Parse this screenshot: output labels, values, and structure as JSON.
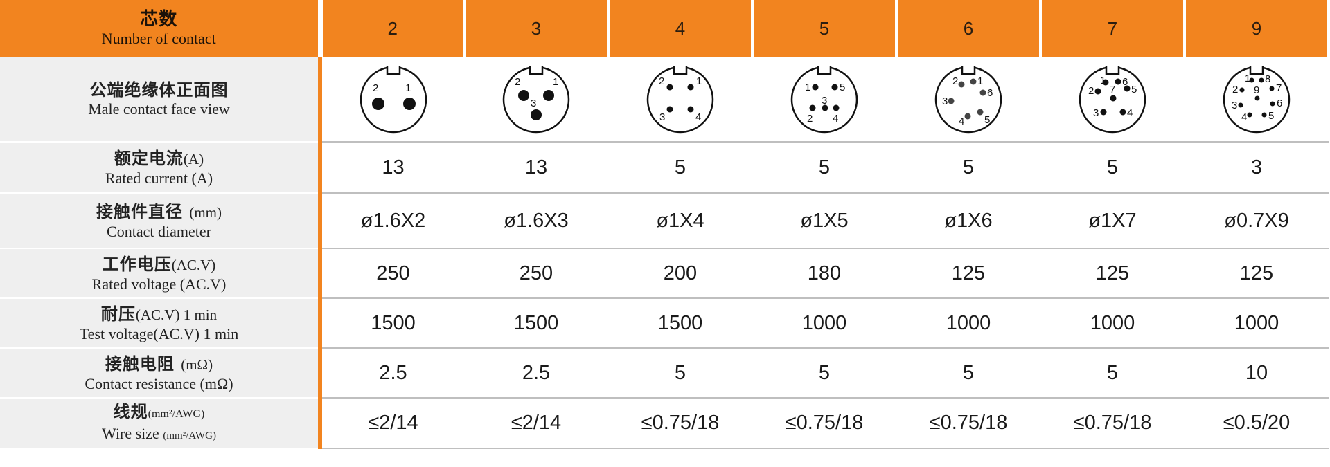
{
  "header": {
    "label_zh": "芯数",
    "label_en": "Number of contact",
    "columns": [
      "2",
      "3",
      "4",
      "5",
      "6",
      "7",
      "9"
    ]
  },
  "rows": {
    "face": {
      "zh": "公端绝缘体正面图",
      "en": "Male contact face view"
    },
    "current": {
      "zh": "额定电流",
      "zh_unit": "(A)",
      "en": "Rated current (A)",
      "values": [
        "13",
        "13",
        "5",
        "5",
        "5",
        "5",
        "3"
      ]
    },
    "diameter": {
      "zh": "接触件直径",
      "zh_unit": "(mm)",
      "en": "Contact diameter",
      "values": [
        "ø1.6X2",
        "ø1.6X3",
        "ø1X4",
        "ø1X5",
        "ø1X6",
        "ø1X7",
        "ø0.7X9"
      ]
    },
    "voltage": {
      "zh": "工作电压",
      "zh_unit": "(AC.V)",
      "en": "Rated voltage (AC.V)",
      "values": [
        "250",
        "250",
        "200",
        "180",
        "125",
        "125",
        "125"
      ]
    },
    "test": {
      "zh": "耐压",
      "zh_unit": "(AC.V) 1 min",
      "en": "Test voltage(AC.V) 1 min",
      "values": [
        "1500",
        "1500",
        "1500",
        "1000",
        "1000",
        "1000",
        "1000"
      ]
    },
    "resistance": {
      "zh": "接触电阻",
      "zh_unit": "(mΩ)",
      "en": "Contact resistance (mΩ)",
      "values": [
        "2.5",
        "2.5",
        "5",
        "5",
        "5",
        "5",
        "10"
      ]
    },
    "wire": {
      "zh": "线规",
      "zh_unit": "(mm²/AWG)",
      "en_main": "Wire size",
      "en_unit": "(mm²/AWG)",
      "values": [
        "≤2/14",
        "≤2/14",
        "≤0.75/18",
        "≤0.75/18",
        "≤0.75/18",
        "≤0.75/18",
        "≤0.5/20"
      ]
    }
  },
  "face_views": [
    {
      "pins": [
        "1",
        "2"
      ]
    },
    {
      "pins": [
        "1",
        "2",
        "3"
      ]
    },
    {
      "pins": [
        "1",
        "2",
        "3",
        "4"
      ]
    },
    {
      "pins": [
        "1",
        "2",
        "3",
        "4",
        "5"
      ]
    },
    {
      "pins": [
        "1",
        "2",
        "3",
        "4",
        "5",
        "6"
      ]
    },
    {
      "pins": [
        "1",
        "2",
        "3",
        "4",
        "5",
        "6",
        "7"
      ]
    },
    {
      "pins": [
        "1",
        "2",
        "3",
        "4",
        "5",
        "6",
        "7",
        "8",
        "9"
      ]
    }
  ],
  "colors": {
    "accent": "#f2841f",
    "label_bg": "#efefef"
  }
}
